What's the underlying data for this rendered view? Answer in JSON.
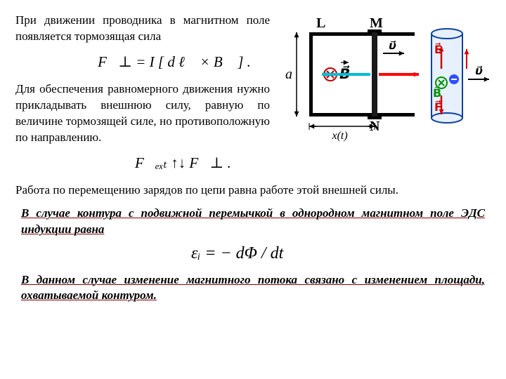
{
  "p1": "При движении проводника в магнитном поле появляется тормозящая сила",
  "eq1": "F⃗⊥ = I [ d ℓ⃗ × B⃗ ] .",
  "p2": "Для обеспечения равномерного движения нужно прикладывать внешнюю силу, равную по величине тормозящей силе, но противоположную по направлению.",
  "eq2": "F⃗ₑₓₜ ↑↓ F⃗⊥ .",
  "p3": "Работа по перемещению зарядов по цепи равна работе этой внешней силы.",
  "p4": "В случае контура с подвижной перемычкой в однородном магнитном поле ЭДС индукции равна",
  "eq3": "εᵢ = − dΦ / dt",
  "p5": "В данном случае изменение магнитного потока связано с изменением площади, охватываемой контуром.",
  "diagram": {
    "labels": {
      "L": "L",
      "M": "M",
      "N": "N",
      "a": "a",
      "xt": "x(t)",
      "B": "B⃗",
      "v": "υ⃗",
      "E": "E⃗",
      "F": "F⃗"
    },
    "colors": {
      "frame": "#000000",
      "bar": "#1a1a1a",
      "arrow_blue": "#00bcd4",
      "arrow_red": "#ff0000",
      "arrow_v": "#000000",
      "B_sym": "#c00000",
      "cyl_fill": "#e6f0ff",
      "cyl_stroke": "#1040a0",
      "E": "#d00000",
      "Bg": "#009000",
      "F": "#d00000",
      "charge": "#3050ff"
    },
    "font": "Times New Roman",
    "fontsize_label": 20,
    "fontsize_small": 16
  }
}
